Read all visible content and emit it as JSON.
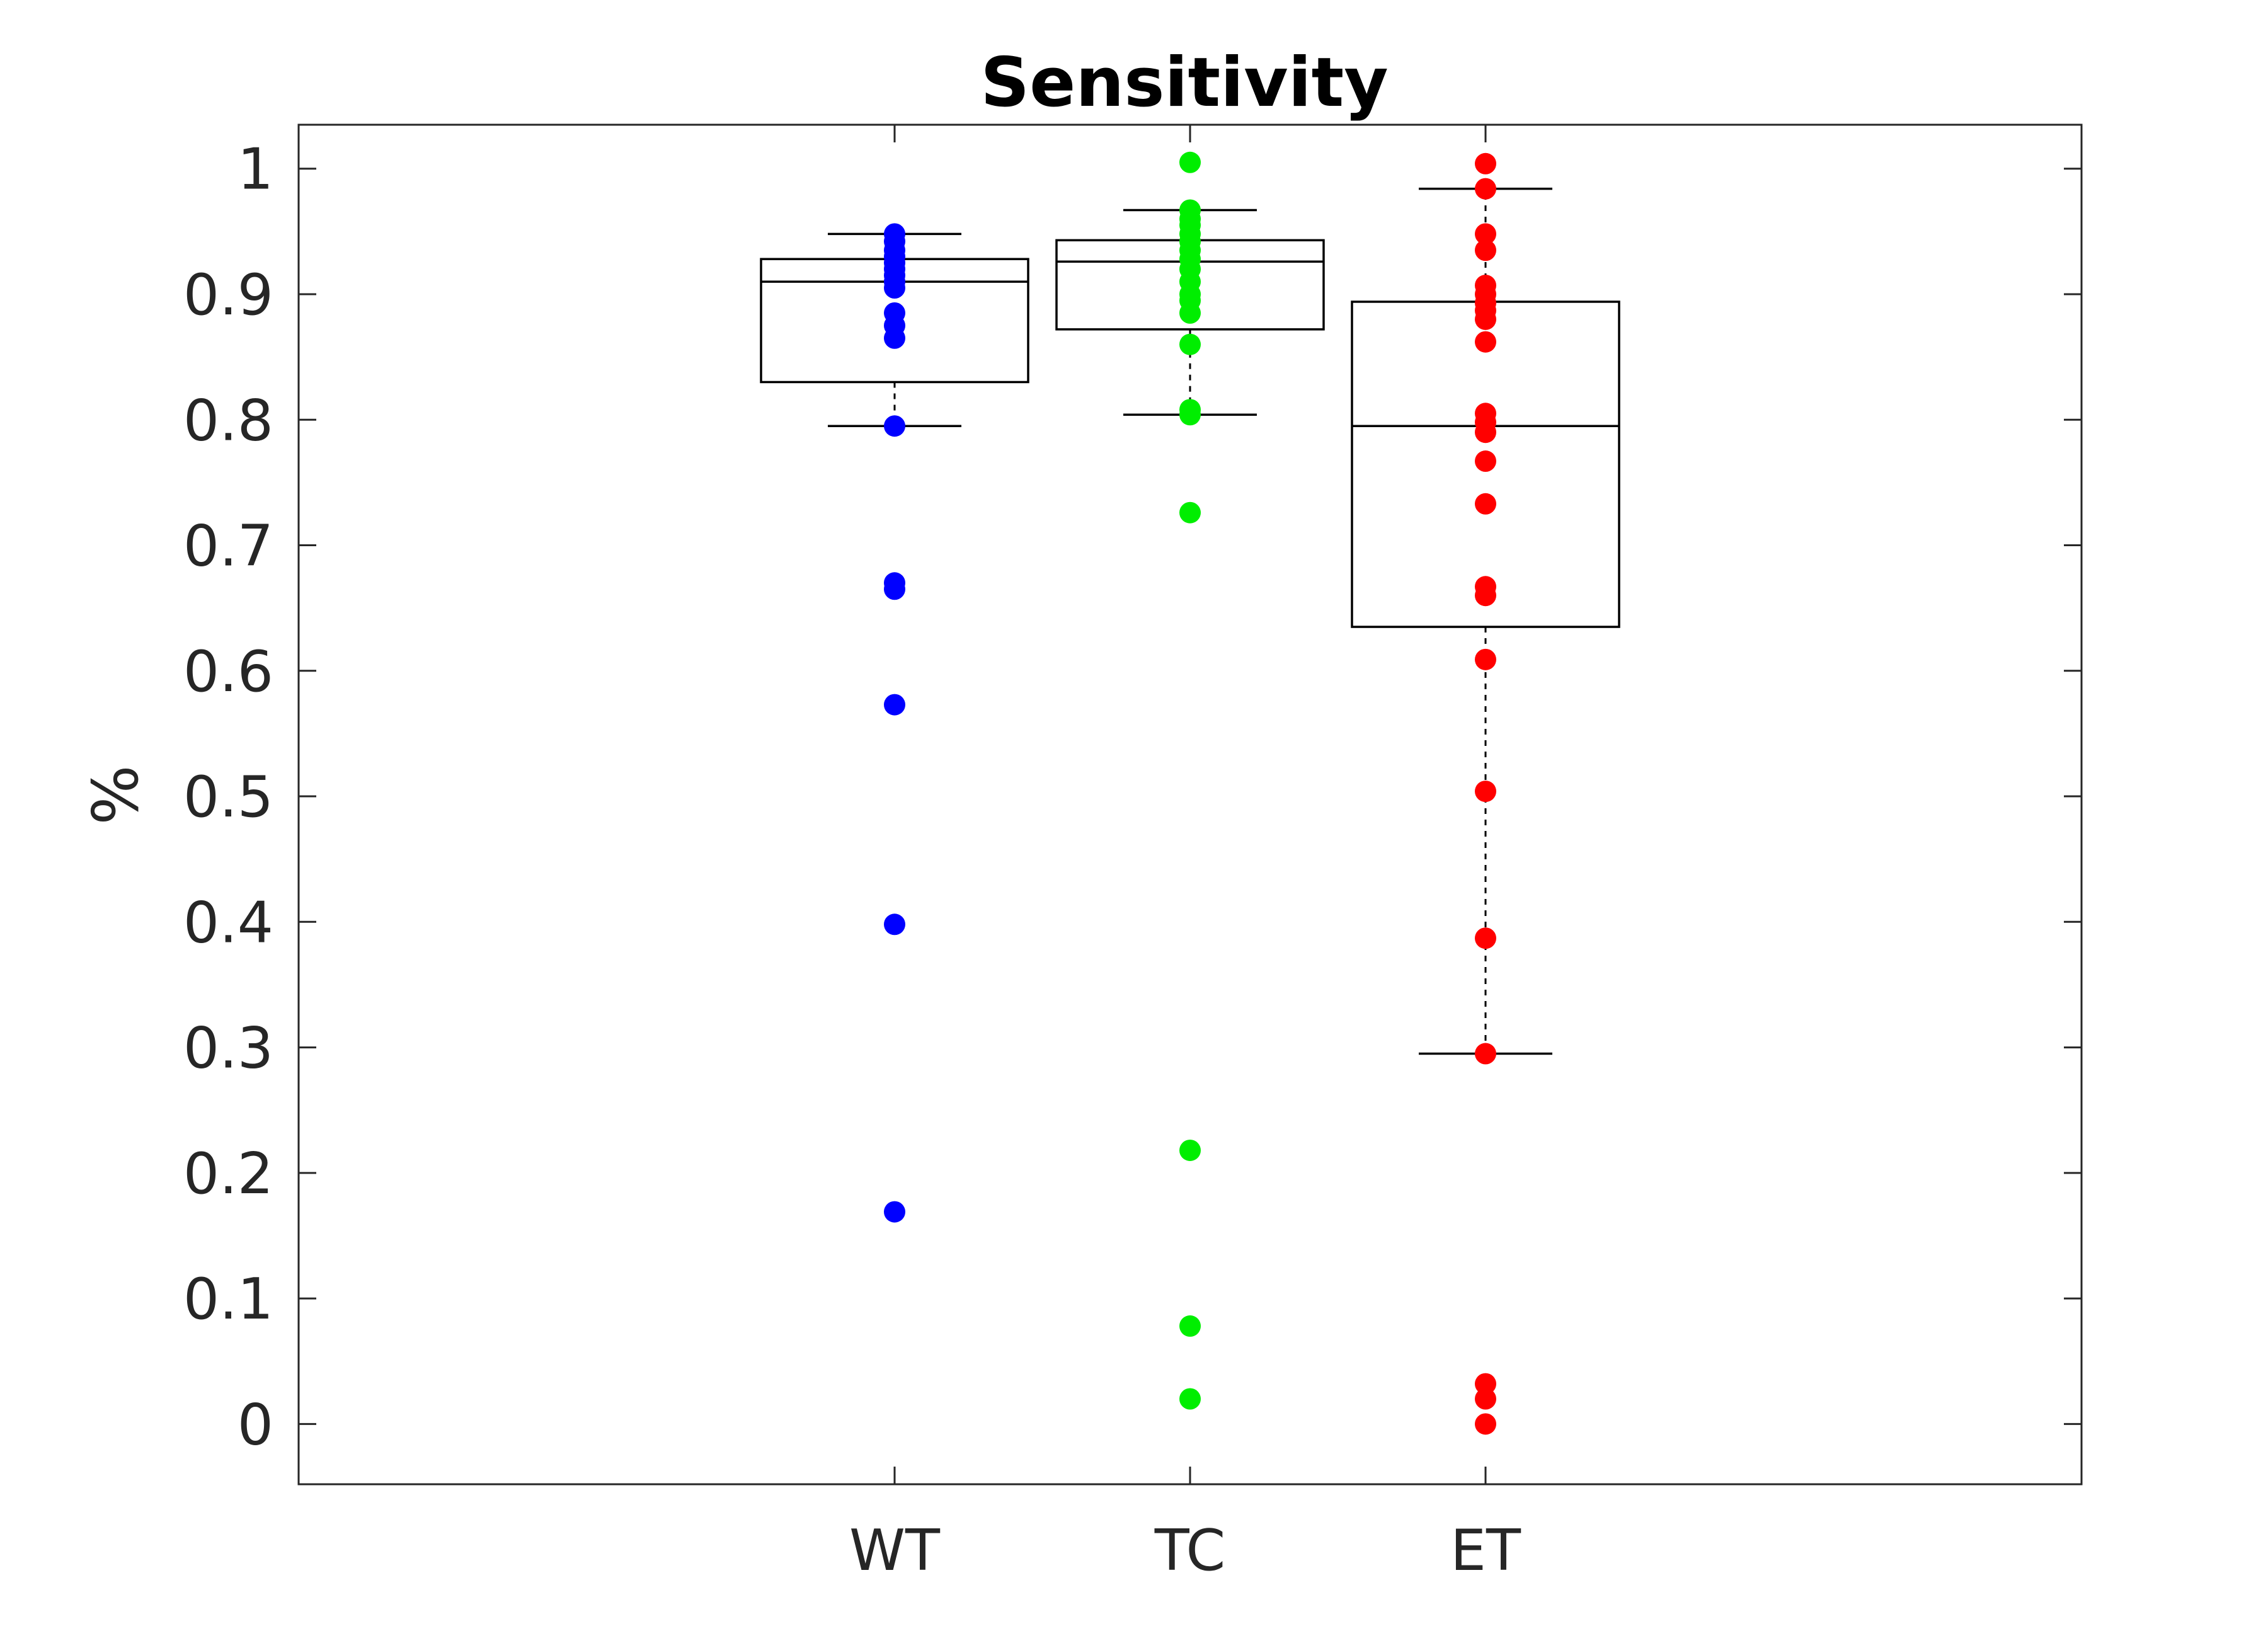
{
  "chart_data": {
    "type": "box",
    "title": "Sensitivity",
    "xlabel": "",
    "ylabel": "%",
    "ylim": [
      -0.048,
      1.035
    ],
    "yticks": [
      0,
      0.1,
      0.2,
      0.3,
      0.4,
      0.5,
      0.6,
      0.7,
      0.8,
      0.9,
      1
    ],
    "ytick_labels": [
      "0",
      "0.1",
      "0.2",
      "0.3",
      "0.4",
      "0.5",
      "0.6",
      "0.7",
      "0.8",
      "0.9",
      "1"
    ],
    "grid": false,
    "categories": [
      "WT",
      "TC",
      "ET"
    ],
    "series": [
      {
        "category": "WT",
        "color": "#0000ff",
        "box": {
          "whisker_low": 0.795,
          "q1": 0.83,
          "median": 0.91,
          "q3": 0.928,
          "whisker_high": 0.948
        },
        "points": [
          0.948,
          0.942,
          0.935,
          0.93,
          0.925,
          0.92,
          0.915,
          0.91,
          0.905,
          0.885,
          0.875,
          0.865,
          0.795,
          0.67,
          0.665,
          0.573,
          0.398,
          0.169
        ]
      },
      {
        "category": "TC",
        "color": "#00ee00",
        "box": {
          "whisker_low": 0.804,
          "q1": 0.872,
          "median": 0.926,
          "q3": 0.943,
          "whisker_high": 0.967
        },
        "points": [
          1.005,
          0.967,
          0.96,
          0.955,
          0.948,
          0.942,
          0.935,
          0.928,
          0.92,
          0.91,
          0.9,
          0.895,
          0.885,
          0.86,
          0.808,
          0.804,
          0.726,
          0.218,
          0.078,
          0.02
        ]
      },
      {
        "category": "ET",
        "color": "#ff0000",
        "box": {
          "whisker_low": 0.295,
          "q1": 0.635,
          "median": 0.795,
          "q3": 0.894,
          "whisker_high": 0.984
        },
        "points": [
          1.004,
          0.984,
          0.948,
          0.935,
          0.907,
          0.9,
          0.893,
          0.887,
          0.88,
          0.862,
          0.805,
          0.798,
          0.79,
          0.767,
          0.733,
          0.667,
          0.66,
          0.609,
          0.504,
          0.387,
          0.295,
          0.032,
          0.02,
          0.0
        ]
      }
    ]
  }
}
